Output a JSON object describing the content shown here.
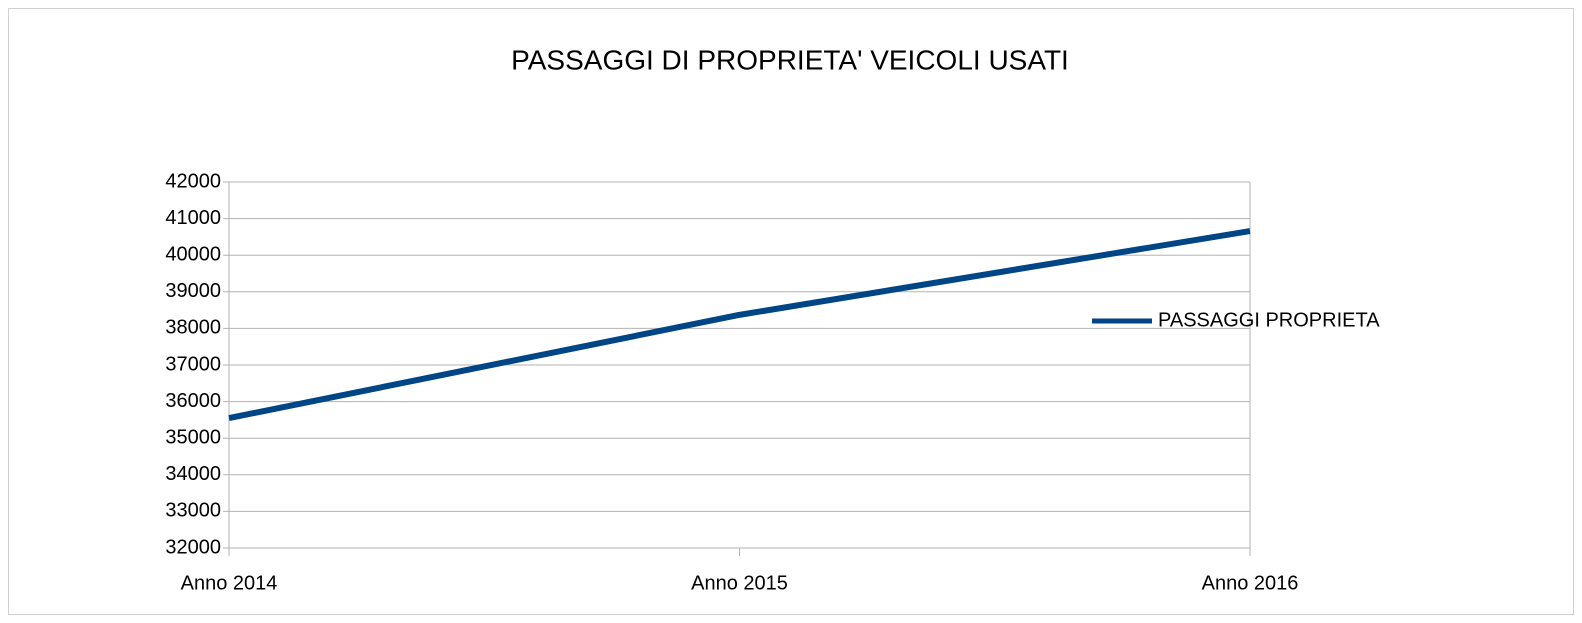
{
  "chart_data": {
    "type": "line",
    "title": "PASSAGGI DI PROPRIETA' VEICOLI USATI",
    "categories": [
      "Anno 2014",
      "Anno 2015",
      "Anno 2016"
    ],
    "series": [
      {
        "name": "PASSAGGI PROPRIETA",
        "color": "#004586",
        "values": [
          35550,
          38370,
          40660
        ]
      }
    ],
    "ylim": [
      32000,
      42000
    ],
    "yticks": [
      32000,
      33000,
      34000,
      35000,
      36000,
      37000,
      38000,
      39000,
      40000,
      41000,
      42000
    ],
    "grid": true,
    "legend": "right"
  }
}
